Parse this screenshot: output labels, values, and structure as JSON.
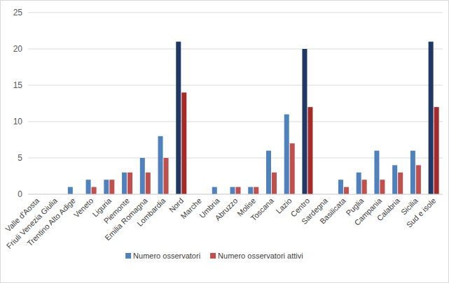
{
  "chart_data": {
    "type": "bar",
    "categories": [
      "Valle d'Aosta",
      "Friuli Venezia Giulia",
      "Trentino Alto Adige",
      "Veneto",
      "Liguria",
      "Piemonte",
      "Emilia Romagna",
      "Lombardia",
      "Nord",
      "Marche",
      "Umbria",
      "Abruzzo",
      "Molise",
      "Toscana",
      "Lazio",
      "Centro",
      "Sardegna",
      "Basilicata",
      "Puglia",
      "Campania",
      "Calabria",
      "Sicilia",
      "Sud e isole"
    ],
    "series": [
      {
        "name": "Numero osservatori",
        "color": "#4f81bd",
        "colors": [
          "#4f81bd",
          "#4f81bd",
          "#4f81bd",
          "#4f81bd",
          "#4f81bd",
          "#4f81bd",
          "#4f81bd",
          "#4f81bd",
          "#1f3864",
          "#4f81bd",
          "#4f81bd",
          "#4f81bd",
          "#4f81bd",
          "#4f81bd",
          "#4f81bd",
          "#1f3864",
          "#4f81bd",
          "#4f81bd",
          "#4f81bd",
          "#4f81bd",
          "#4f81bd",
          "#4f81bd",
          "#1f3864"
        ],
        "values": [
          0,
          0,
          1,
          2,
          2,
          3,
          5,
          8,
          21,
          0,
          1,
          1,
          1,
          6,
          11,
          20,
          0,
          2,
          3,
          6,
          4,
          6,
          21
        ]
      },
      {
        "name": "Numero osservatori attivi",
        "color": "#c0504d",
        "colors": [
          "#c0504d",
          "#c0504d",
          "#c0504d",
          "#c0504d",
          "#c0504d",
          "#c0504d",
          "#c0504d",
          "#c0504d",
          "#a52a2a",
          "#c0504d",
          "#c0504d",
          "#c0504d",
          "#c0504d",
          "#c0504d",
          "#c0504d",
          "#a52a2a",
          "#c0504d",
          "#c0504d",
          "#c0504d",
          "#c0504d",
          "#c0504d",
          "#c0504d",
          "#a52a2a"
        ],
        "values": [
          0,
          0,
          0,
          1,
          2,
          3,
          3,
          5,
          14,
          0,
          0,
          1,
          1,
          3,
          7,
          12,
          0,
          1,
          2,
          2,
          3,
          4,
          12
        ]
      }
    ],
    "ylim": [
      0,
      25
    ],
    "yticks": [
      0,
      5,
      10,
      15,
      20,
      25
    ],
    "grid": true,
    "legend": "bottom"
  }
}
